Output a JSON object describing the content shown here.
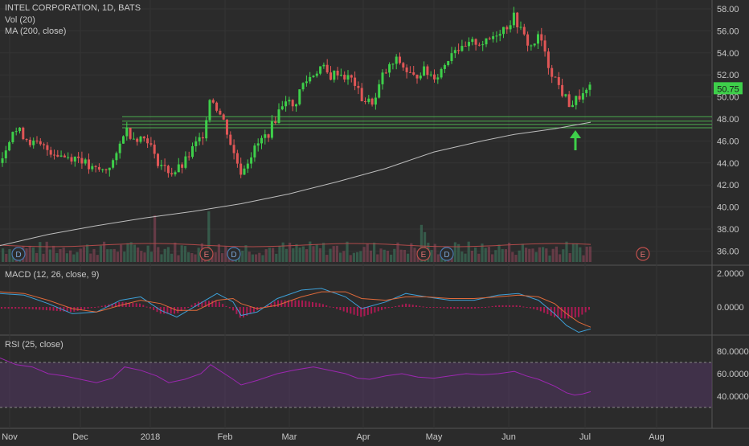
{
  "chart_data": {
    "type": "candlestick",
    "title": "INTEL CORPORATION, 1D, BATS",
    "indicators": {
      "vol": "Vol (20)",
      "ma": "MA (200, close)",
      "macd": "MACD (12, 26, close, 9)",
      "rsi": "RSI (25, close)"
    },
    "x_ticks": [
      "Nov",
      "Dec",
      "2018",
      "Feb",
      "Mar",
      "Apr",
      "May",
      "Jun",
      "Jul",
      "Aug"
    ],
    "price_ticks": [
      "58.00",
      "56.00",
      "54.00",
      "52.00",
      "50.00",
      "48.00",
      "46.00",
      "44.00",
      "42.00",
      "40.00",
      "38.00",
      "36.00"
    ],
    "price_ylim": [
      35.0,
      59.0
    ],
    "last_price": "50.75",
    "macd_ticks": [
      "2.0000",
      "0.0000"
    ],
    "rsi_ticks": [
      "80.0000",
      "60.0000",
      "40.0000"
    ],
    "rsi_band": [
      30,
      70
    ],
    "support_lines": [
      48.2,
      47.8,
      47.5,
      47.2
    ],
    "ma200": [
      [
        0,
        36.5
      ],
      [
        60,
        37.5
      ],
      [
        120,
        38.3
      ],
      [
        180,
        39.0
      ],
      [
        240,
        39.6
      ],
      [
        300,
        40.3
      ],
      [
        360,
        41.2
      ],
      [
        420,
        42.3
      ],
      [
        480,
        43.5
      ],
      [
        540,
        45.0
      ],
      [
        600,
        46.0
      ],
      [
        640,
        46.6
      ],
      [
        690,
        47.1
      ],
      [
        735,
        47.7
      ]
    ],
    "price_path": [
      [
        0,
        44.0
      ],
      [
        15,
        47.0
      ],
      [
        25,
        46.8
      ],
      [
        40,
        45.8
      ],
      [
        60,
        45.2
      ],
      [
        80,
        44.6
      ],
      [
        100,
        44.5
      ],
      [
        112,
        43.4
      ],
      [
        130,
        43.3
      ],
      [
        145,
        44.5
      ],
      [
        155,
        47.2
      ],
      [
        165,
        46.4
      ],
      [
        185,
        46.2
      ],
      [
        192,
        44.5
      ],
      [
        205,
        43.5
      ],
      [
        215,
        43.1
      ],
      [
        228,
        43.8
      ],
      [
        240,
        45.3
      ],
      [
        252,
        46.5
      ],
      [
        262,
        50.2
      ],
      [
        270,
        49.0
      ],
      [
        280,
        47.5
      ],
      [
        290,
        45.0
      ],
      [
        300,
        43.2
      ],
      [
        310,
        44.5
      ],
      [
        322,
        45.8
      ],
      [
        335,
        46.8
      ],
      [
        345,
        48.4
      ],
      [
        355,
        50.0
      ],
      [
        365,
        48.9
      ],
      [
        375,
        51.0
      ],
      [
        390,
        52.1
      ],
      [
        400,
        52.8
      ],
      [
        410,
        51.8
      ],
      [
        420,
        52.3
      ],
      [
        430,
        51.8
      ],
      [
        440,
        51.5
      ],
      [
        448,
        50.0
      ],
      [
        458,
        49.5
      ],
      [
        467,
        49.7
      ],
      [
        475,
        51.8
      ],
      [
        485,
        52.7
      ],
      [
        495,
        53.4
      ],
      [
        505,
        52.4
      ],
      [
        515,
        51.7
      ],
      [
        525,
        52.5
      ],
      [
        535,
        52.0
      ],
      [
        545,
        52.0
      ],
      [
        555,
        53.2
      ],
      [
        565,
        54.6
      ],
      [
        575,
        54.2
      ],
      [
        590,
        55.0
      ],
      [
        605,
        54.9
      ],
      [
        620,
        56.0
      ],
      [
        630,
        56.4
      ],
      [
        640,
        57.3
      ],
      [
        650,
        55.7
      ],
      [
        660,
        54.5
      ],
      [
        672,
        55.6
      ],
      [
        680,
        53.2
      ],
      [
        690,
        51.8
      ],
      [
        700,
        50.3
      ],
      [
        710,
        49.2
      ],
      [
        720,
        50.0
      ],
      [
        728,
        50.2
      ],
      [
        735,
        50.75
      ]
    ],
    "macd_line": [
      [
        0,
        0.8
      ],
      [
        30,
        0.7
      ],
      [
        60,
        0.2
      ],
      [
        90,
        -0.4
      ],
      [
        120,
        -0.3
      ],
      [
        150,
        0.4
      ],
      [
        175,
        0.6
      ],
      [
        200,
        -0.2
      ],
      [
        220,
        -0.6
      ],
      [
        245,
        0.1
      ],
      [
        270,
        0.8
      ],
      [
        290,
        0.3
      ],
      [
        300,
        -0.5
      ],
      [
        320,
        -0.3
      ],
      [
        345,
        0.5
      ],
      [
        375,
        1.0
      ],
      [
        400,
        1.1
      ],
      [
        430,
        0.6
      ],
      [
        450,
        -0.1
      ],
      [
        480,
        0.3
      ],
      [
        505,
        0.8
      ],
      [
        530,
        0.6
      ],
      [
        560,
        0.4
      ],
      [
        590,
        0.4
      ],
      [
        620,
        0.7
      ],
      [
        645,
        0.8
      ],
      [
        670,
        0.4
      ],
      [
        690,
        -0.4
      ],
      [
        705,
        -1.1
      ],
      [
        720,
        -1.5
      ],
      [
        735,
        -1.3
      ]
    ],
    "macd_signal": [
      [
        0,
        0.9
      ],
      [
        30,
        0.8
      ],
      [
        60,
        0.4
      ],
      [
        90,
        -0.1
      ],
      [
        120,
        -0.3
      ],
      [
        150,
        0.1
      ],
      [
        175,
        0.4
      ],
      [
        200,
        0.2
      ],
      [
        220,
        -0.2
      ],
      [
        245,
        -0.2
      ],
      [
        270,
        0.4
      ],
      [
        290,
        0.5
      ],
      [
        300,
        0.2
      ],
      [
        320,
        -0.1
      ],
      [
        345,
        0.1
      ],
      [
        375,
        0.6
      ],
      [
        400,
        0.9
      ],
      [
        430,
        0.9
      ],
      [
        450,
        0.5
      ],
      [
        480,
        0.4
      ],
      [
        505,
        0.6
      ],
      [
        530,
        0.6
      ],
      [
        560,
        0.5
      ],
      [
        590,
        0.5
      ],
      [
        620,
        0.6
      ],
      [
        645,
        0.7
      ],
      [
        670,
        0.6
      ],
      [
        690,
        0.2
      ],
      [
        705,
        -0.4
      ],
      [
        720,
        -0.9
      ],
      [
        735,
        -1.2
      ]
    ],
    "rsi": [
      [
        0,
        74
      ],
      [
        20,
        68
      ],
      [
        40,
        66
      ],
      [
        60,
        60
      ],
      [
        80,
        58
      ],
      [
        100,
        55
      ],
      [
        120,
        52
      ],
      [
        140,
        56
      ],
      [
        155,
        66
      ],
      [
        175,
        63
      ],
      [
        195,
        58
      ],
      [
        210,
        52
      ],
      [
        230,
        55
      ],
      [
        250,
        60
      ],
      [
        262,
        68
      ],
      [
        275,
        62
      ],
      [
        290,
        55
      ],
      [
        300,
        50
      ],
      [
        320,
        54
      ],
      [
        345,
        60
      ],
      [
        365,
        63
      ],
      [
        390,
        66
      ],
      [
        410,
        63
      ],
      [
        430,
        60
      ],
      [
        445,
        56
      ],
      [
        460,
        55
      ],
      [
        480,
        58
      ],
      [
        500,
        60
      ],
      [
        520,
        57
      ],
      [
        540,
        56
      ],
      [
        560,
        58
      ],
      [
        580,
        60
      ],
      [
        600,
        59
      ],
      [
        620,
        60
      ],
      [
        640,
        62
      ],
      [
        655,
        58
      ],
      [
        670,
        55
      ],
      [
        690,
        49
      ],
      [
        705,
        43
      ],
      [
        715,
        41
      ],
      [
        725,
        42
      ],
      [
        735,
        44
      ]
    ],
    "earnings_markers": [
      {
        "label": "D",
        "x": 23
      },
      {
        "label": "E",
        "x": 257
      },
      {
        "label": "D",
        "x": 291
      },
      {
        "label": "E",
        "x": 527
      },
      {
        "label": "D",
        "x": 556
      },
      {
        "label": "E",
        "x": 800
      }
    ]
  }
}
